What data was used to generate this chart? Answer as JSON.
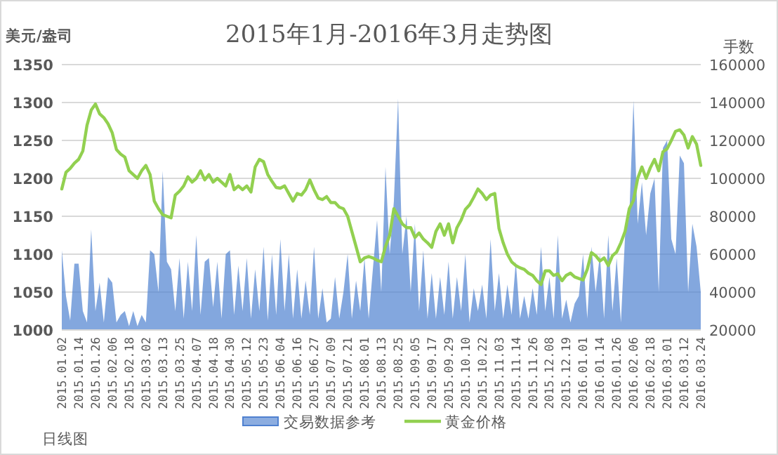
{
  "chart_data": {
    "type": "line",
    "title": "2015年1月-2016年3月走势图",
    "ylabel": "美元/盎司",
    "y2label": "手数",
    "categories": [
      "2015.01.02",
      null,
      null,
      null,
      "2015.01.14",
      null,
      null,
      null,
      "2015.01.26",
      null,
      null,
      null,
      "2015.02.06",
      null,
      null,
      null,
      "2015.02.18",
      null,
      null,
      null,
      "2015.03.02",
      null,
      null,
      null,
      "2015.03.13",
      null,
      null,
      null,
      "2015.03.25",
      null,
      null,
      null,
      "2015.04.07",
      null,
      null,
      null,
      "2015.04.18",
      null,
      null,
      null,
      "2015.04.30",
      null,
      null,
      null,
      "2015.05.12",
      null,
      null,
      null,
      "2015.05.23",
      null,
      null,
      null,
      "2015.06.04",
      null,
      null,
      null,
      "2015.06.16",
      null,
      null,
      null,
      "2015.06.27",
      null,
      null,
      null,
      "2015.07.09",
      null,
      null,
      null,
      "2015.07.21",
      null,
      null,
      null,
      "2015.08.01",
      null,
      null,
      null,
      "2015.08.13",
      null,
      null,
      null,
      "2015.08.25",
      null,
      null,
      null,
      "2015.09.05",
      null,
      null,
      null,
      "2015.09.17",
      null,
      null,
      null,
      "2015.09.29",
      null,
      null,
      null,
      "2015.10.10",
      null,
      null,
      null,
      "2015.10.22",
      null,
      null,
      null,
      "2015.11.03",
      null,
      null,
      null,
      "2015.11.14",
      null,
      null,
      null,
      "2015.11.26",
      null,
      null,
      null,
      "2015.12.08",
      null,
      null,
      null,
      "2015.12.19",
      null,
      null,
      null,
      "2016.01.01",
      null,
      null,
      null,
      "2016.01.14",
      null,
      null,
      null,
      "2016.01.26",
      null,
      null,
      null,
      "2016.02.06",
      null,
      null,
      null,
      "2016.02.18",
      null,
      null,
      null,
      "2016.03.01",
      null,
      null,
      null,
      "2016.03.12",
      null,
      null,
      null,
      "2016.03.24"
    ],
    "series": [
      {
        "name": "交易数据参考",
        "type": "area",
        "axis": "y2",
        "color": "#4f81d0",
        "values": [
          62000,
          38000,
          25000,
          55000,
          55000,
          30000,
          24000,
          73000,
          30000,
          45000,
          24000,
          48000,
          45000,
          24000,
          28000,
          30000,
          22000,
          30000,
          22000,
          28000,
          24000,
          62000,
          60000,
          40000,
          104000,
          56000,
          52000,
          30000,
          58000,
          26000,
          56000,
          30000,
          70000,
          28000,
          56000,
          58000,
          32000,
          56000,
          26000,
          60000,
          62000,
          28000,
          54000,
          30000,
          58000,
          26000,
          52000,
          30000,
          64000,
          25000,
          60000,
          28000,
          68000,
          30000,
          60000,
          26000,
          52000,
          26000,
          46000,
          28000,
          64000,
          26000,
          42000,
          24000,
          26000,
          48000,
          26000,
          40000,
          60000,
          26000,
          46000,
          30000,
          58000,
          26000,
          52000,
          78000,
          40000,
          106000,
          60000,
          88000,
          142000,
          60000,
          80000,
          40000,
          76000,
          30000,
          62000,
          26000,
          50000,
          26000,
          48000,
          28000,
          56000,
          26000,
          48000,
          30000,
          60000,
          24000,
          42000,
          30000,
          44000,
          26000,
          68000,
          30000,
          50000,
          26000,
          44000,
          28000,
          56000,
          26000,
          38000,
          26000,
          42000,
          28000,
          64000,
          30000,
          48000,
          26000,
          70000,
          26000,
          36000,
          24000,
          34000,
          38000,
          60000,
          26000,
          64000,
          40000,
          60000,
          26000,
          70000,
          30000,
          58000,
          24000,
          70000,
          80000,
          141000,
          76000,
          98000,
          70000,
          92000,
          100000,
          40000,
          116000,
          120000,
          68000,
          60000,
          112000,
          108000,
          40000,
          76000,
          64000,
          40000
        ]
      },
      {
        "name": "黄金价格",
        "color": "#92d050",
        "values": [
          1186,
          1208,
          1213,
          1220,
          1225,
          1236,
          1270,
          1290,
          1298,
          1285,
          1280,
          1272,
          1260,
          1238,
          1232,
          1228,
          1210,
          1205,
          1200,
          1210,
          1217,
          1205,
          1170,
          1160,
          1152,
          1150,
          1148,
          1178,
          1183,
          1190,
          1202,
          1195,
          1200,
          1210,
          1198,
          1205,
          1195,
          1200,
          1195,
          1190,
          1205,
          1185,
          1190,
          1185,
          1190,
          1182,
          1215,
          1225,
          1222,
          1205,
          1196,
          1188,
          1187,
          1190,
          1180,
          1170,
          1180,
          1178,
          1185,
          1198,
          1185,
          1174,
          1172,
          1176,
          1168,
          1168,
          1162,
          1160,
          1150,
          1130,
          1110,
          1090,
          1095,
          1097,
          1095,
          1092,
          1090,
          1110,
          1125,
          1160,
          1150,
          1140,
          1135,
          1135,
          1122,
          1128,
          1120,
          1115,
          1109,
          1130,
          1140,
          1125,
          1140,
          1115,
          1135,
          1145,
          1159,
          1165,
          1175,
          1186,
          1180,
          1172,
          1178,
          1180,
          1134,
          1115,
          1100,
          1090,
          1085,
          1082,
          1080,
          1075,
          1072,
          1065,
          1060,
          1078,
          1078,
          1072,
          1074,
          1065,
          1072,
          1075,
          1070,
          1068,
          1066,
          1080,
          1102,
          1098,
          1091,
          1095,
          1085,
          1098,
          1103,
          1115,
          1130,
          1160,
          1171,
          1200,
          1215,
          1200,
          1214,
          1225,
          1210,
          1235,
          1239,
          1250,
          1262,
          1264,
          1257,
          1240,
          1255,
          1245,
          1217
        ]
      }
    ],
    "ylim": [
      1000,
      1350
    ],
    "yticks": [
      1000,
      1050,
      1100,
      1150,
      1200,
      1250,
      1300,
      1350
    ],
    "y2lim": [
      20000,
      160000
    ],
    "y2ticks": [
      20000,
      40000,
      60000,
      80000,
      100000,
      120000,
      140000,
      160000
    ],
    "grid": "y",
    "legend": "bottom",
    "annotations": [
      "日线图"
    ]
  }
}
